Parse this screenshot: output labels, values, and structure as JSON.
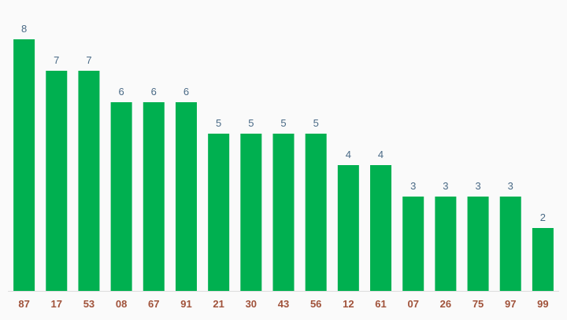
{
  "chart_data": {
    "type": "bar",
    "categories": [
      "87",
      "17",
      "53",
      "08",
      "67",
      "91",
      "21",
      "30",
      "43",
      "56",
      "12",
      "61",
      "07",
      "26",
      "75",
      "97",
      "99"
    ],
    "values": [
      8,
      7,
      7,
      6,
      6,
      6,
      5,
      5,
      5,
      5,
      4,
      4,
      3,
      3,
      3,
      3,
      2
    ],
    "title": "",
    "xlabel": "",
    "ylabel": "",
    "ylim": [
      0,
      8
    ],
    "grid": false,
    "legend": "none",
    "data_labels": true
  },
  "colors": {
    "bar": "#00b050",
    "value_label": "#4a6a86",
    "category_label": "#a0523a",
    "baseline": "#dddddd",
    "background": "#fafafa"
  }
}
